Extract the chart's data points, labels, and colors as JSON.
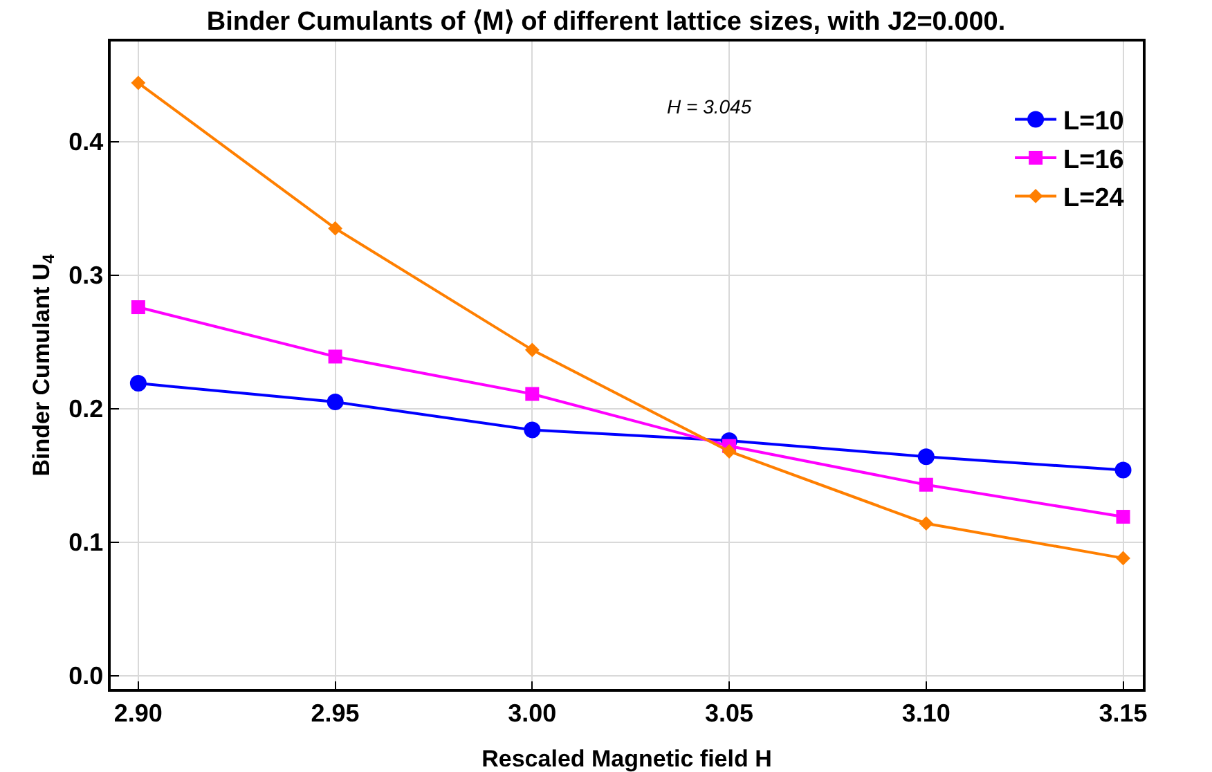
{
  "chart_data": {
    "type": "line",
    "title": "Binder Cumulants of ⟨M⟩ of different lattice sizes, with J2=0.000.",
    "xlabel": "Rescaled Magnetic field H",
    "ylabel": "Binder Cumulant U$_{4}$",
    "x": [
      2.9,
      2.95,
      3.0,
      3.05,
      3.1,
      3.15
    ],
    "series": [
      {
        "name": "L=10",
        "color": "#0000ff",
        "marker": "circle",
        "values": [
          0.219,
          0.205,
          0.184,
          0.176,
          0.164,
          0.154
        ]
      },
      {
        "name": "L=16",
        "color": "#ff00ff",
        "marker": "square",
        "values": [
          0.276,
          0.239,
          0.211,
          0.172,
          0.143,
          0.119
        ]
      },
      {
        "name": "L=24",
        "color": "#ff7f00",
        "marker": "diamond",
        "values": [
          0.444,
          0.335,
          0.244,
          0.168,
          0.114,
          0.088
        ]
      }
    ],
    "annotations": [
      "H = 3.045"
    ],
    "xlim": [
      2.893,
      3.155
    ],
    "ylim": [
      -0.01,
      0.475
    ],
    "xticks": [
      {
        "value": 2.9,
        "label": "2.90"
      },
      {
        "value": 2.95,
        "label": "2.95"
      },
      {
        "value": 3.0,
        "label": "3.00"
      },
      {
        "value": 3.05,
        "label": "3.05"
      },
      {
        "value": 3.1,
        "label": "3.10"
      },
      {
        "value": 3.15,
        "label": "3.15"
      }
    ],
    "yticks": [
      {
        "value": 0,
        "label": "0.0"
      },
      0.1,
      0.2,
      0.3,
      0.4
    ],
    "grid": true,
    "legend": "top right",
    "line_style": "solid"
  }
}
